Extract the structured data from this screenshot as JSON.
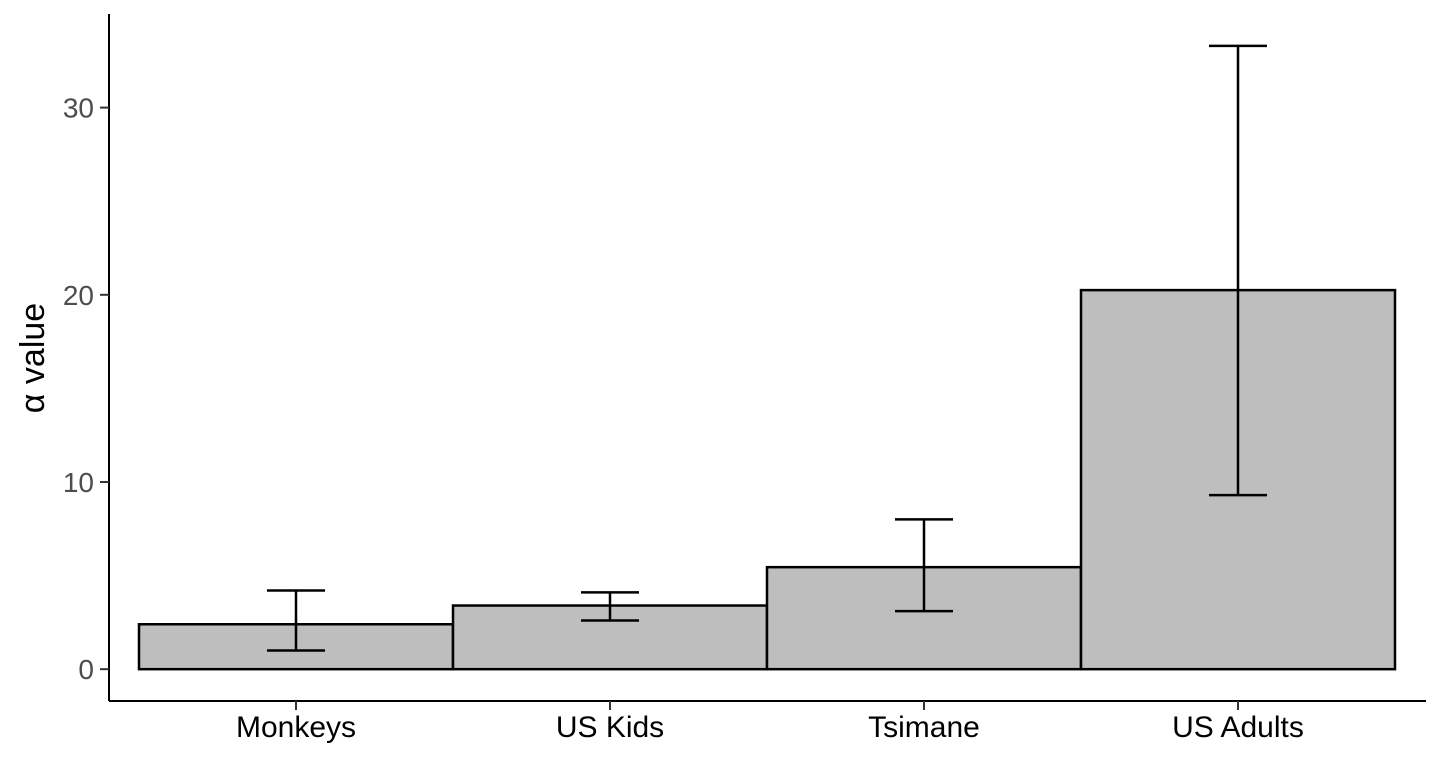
{
  "chart_data": {
    "type": "bar",
    "title": "",
    "xlabel": "",
    "ylabel": "α value",
    "categories": [
      "Monkeys",
      "US Kids",
      "Tsimane",
      "US Adults"
    ],
    "values": [
      2.4,
      3.4,
      5.45,
      20.25
    ],
    "error_low": [
      1.0,
      2.6,
      3.1,
      9.3
    ],
    "error_high": [
      4.2,
      4.1,
      8.0,
      33.3
    ],
    "ylim": [
      -1.7,
      35.0
    ],
    "yticks": [
      0,
      10,
      20,
      30
    ],
    "ytick_labels": [
      "0",
      "10",
      "20",
      "30"
    ],
    "grid": false,
    "legend": "none",
    "colors": {
      "bar_fill": "#bebebe",
      "bar_stroke": "#000000",
      "axis": "#000000",
      "tick_label": "#4d4d4d"
    }
  }
}
